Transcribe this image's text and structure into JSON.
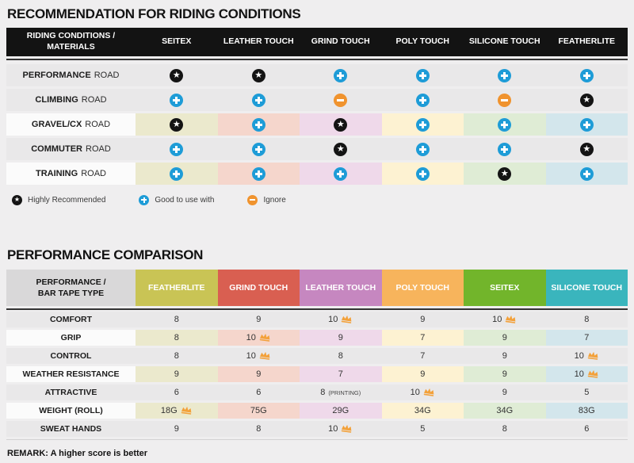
{
  "chart_data": [
    {
      "type": "table",
      "title": "RECOMMENDATION FOR RIDING CONDITIONS",
      "corner_header": "RIDING CONDITIONS /\nMATERIALS",
      "columns": [
        "SEITEX",
        "LEATHER TOUCH",
        "GRIND TOUCH",
        "POLY TOUCH",
        "SILICONE TOUCH",
        "FEATHERLITE"
      ],
      "rows": [
        {
          "label": "PERFORMANCE ROAD",
          "bold": "PERFORMANCE",
          "rest": "ROAD",
          "tinted": false,
          "ratings": [
            "star",
            "star",
            "plus",
            "plus",
            "plus",
            "plus"
          ]
        },
        {
          "label": "CLIMBING ROAD",
          "bold": "CLIMBING",
          "rest": "ROAD",
          "tinted": false,
          "ratings": [
            "plus",
            "plus",
            "minus",
            "plus",
            "minus",
            "star"
          ]
        },
        {
          "label": "GRAVEL/CX ROAD",
          "bold": "GRAVEL/CX",
          "rest": "ROAD",
          "tinted": true,
          "ratings": [
            "star",
            "plus",
            "star",
            "plus",
            "plus",
            "plus"
          ]
        },
        {
          "label": "COMMUTER ROAD",
          "bold": "COMMUTER",
          "rest": "ROAD",
          "tinted": false,
          "ratings": [
            "plus",
            "plus",
            "star",
            "plus",
            "plus",
            "star"
          ]
        },
        {
          "label": "TRAINING ROAD",
          "bold": "TRAINING",
          "rest": "ROAD",
          "tinted": true,
          "ratings": [
            "plus",
            "plus",
            "plus",
            "plus",
            "star",
            "plus"
          ]
        }
      ],
      "legend": [
        {
          "icon": "star",
          "label": "Highly Recommended"
        },
        {
          "icon": "plus",
          "label": "Good to use with"
        },
        {
          "icon": "minus",
          "label": "Ignore"
        }
      ]
    },
    {
      "type": "table",
      "title": "PERFORMANCE COMPARISON",
      "corner_header": "PERFORMANCE /\nBAR TAPE TYPE",
      "columns": [
        "FEATHERLITE",
        "GRIND TOUCH",
        "LEATHER TOUCH",
        "POLY TOUCH",
        "SEITEX",
        "SILICONE TOUCH"
      ],
      "rows": [
        {
          "label": "COMFORT",
          "tinted": false,
          "cells": [
            {
              "v": "8"
            },
            {
              "v": "9"
            },
            {
              "v": "10",
              "crown": true
            },
            {
              "v": "9"
            },
            {
              "v": "10",
              "crown": true
            },
            {
              "v": "8"
            }
          ]
        },
        {
          "label": "GRIP",
          "tinted": true,
          "cells": [
            {
              "v": "8"
            },
            {
              "v": "10",
              "crown": true
            },
            {
              "v": "9"
            },
            {
              "v": "7"
            },
            {
              "v": "9"
            },
            {
              "v": "7"
            }
          ]
        },
        {
          "label": "CONTROL",
          "tinted": false,
          "cells": [
            {
              "v": "8"
            },
            {
              "v": "10",
              "crown": true
            },
            {
              "v": "8"
            },
            {
              "v": "7"
            },
            {
              "v": "9"
            },
            {
              "v": "10",
              "crown": true
            }
          ]
        },
        {
          "label": "WEATHER RESISTANCE",
          "tinted": true,
          "cells": [
            {
              "v": "9"
            },
            {
              "v": "9"
            },
            {
              "v": "7"
            },
            {
              "v": "9"
            },
            {
              "v": "9"
            },
            {
              "v": "10",
              "crown": true
            }
          ]
        },
        {
          "label": "ATTRACTIVE",
          "tinted": false,
          "cells": [
            {
              "v": "6"
            },
            {
              "v": "6"
            },
            {
              "v": "8",
              "suffix": "(PRINTING)"
            },
            {
              "v": "10",
              "crown": true
            },
            {
              "v": "9"
            },
            {
              "v": "5"
            }
          ]
        },
        {
          "label": "WEIGHT (ROLL)",
          "tinted": true,
          "cells": [
            {
              "v": "18G",
              "crown": true
            },
            {
              "v": "75G"
            },
            {
              "v": "29G"
            },
            {
              "v": "34G"
            },
            {
              "v": "34G"
            },
            {
              "v": "83G"
            }
          ]
        },
        {
          "label": "SWEAT HANDS",
          "tinted": false,
          "cells": [
            {
              "v": "9"
            },
            {
              "v": "8"
            },
            {
              "v": "10",
              "crown": true
            },
            {
              "v": "5"
            },
            {
              "v": "8"
            },
            {
              "v": "6"
            }
          ]
        }
      ],
      "remark": "REMARK: A higher score is better"
    }
  ],
  "colors": {
    "page_bg": "#efeeef",
    "table1_header_bg": "#131313",
    "corner2_bg": "#d9d8d9",
    "row_gray": "#e9e8e9",
    "row_white": "#fbfbfb",
    "divider_dark": "#333333",
    "divider_light": "#d2d1d2",
    "rating_star_bg": "#141414",
    "rating_plus_bg": "#1e9cd7",
    "rating_minus_bg": "#f0932e",
    "crown": "#f3a13a",
    "column_header_colors": [
      "#c9c455",
      "#d95f51",
      "#c687c0",
      "#f7b45c",
      "#72b52b",
      "#3ab5bd"
    ],
    "column_tint_colors": [
      "#ebe9cd",
      "#f5d6cc",
      "#efd9ea",
      "#fdf2d2",
      "#dfecd5",
      "#d3e6ec"
    ]
  }
}
